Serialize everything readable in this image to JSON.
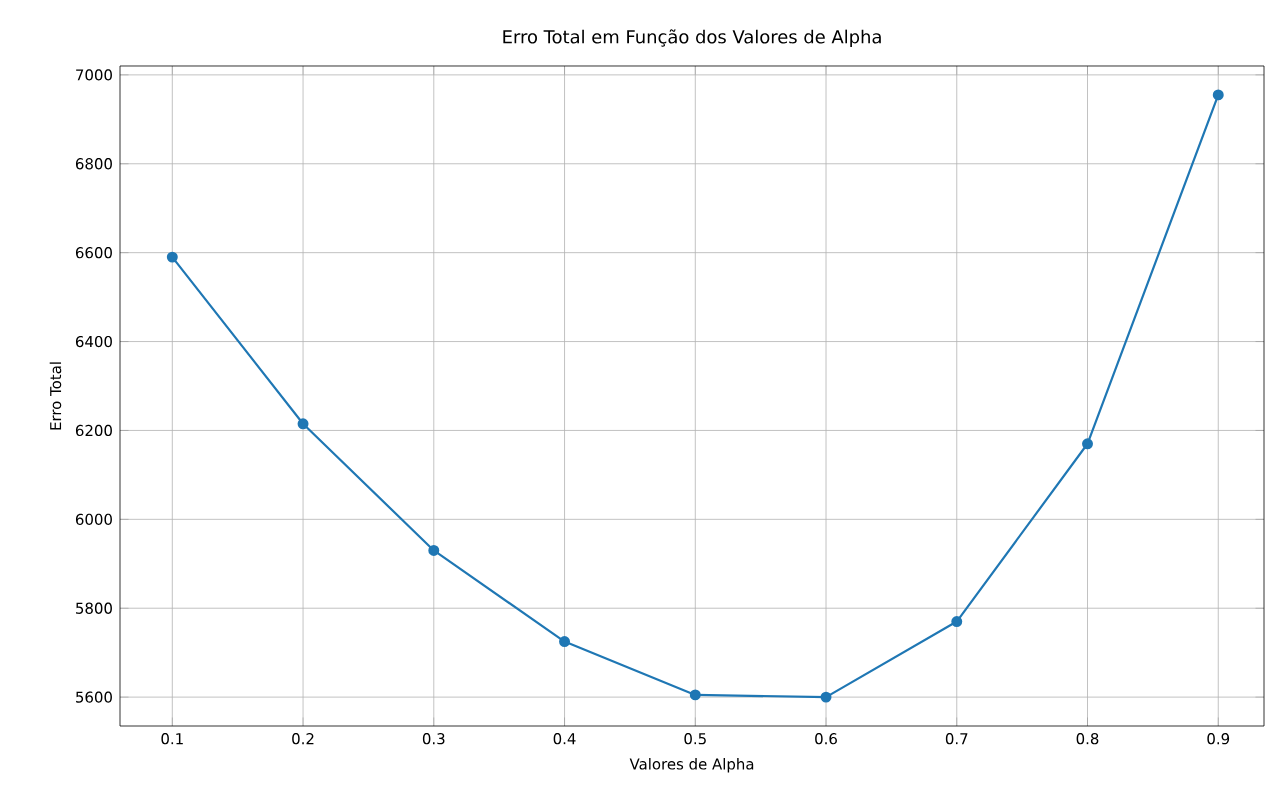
{
  "chart_data": {
    "type": "line",
    "title": "Erro Total em Função dos Valores de Alpha",
    "xlabel": "Valores de Alpha",
    "ylabel": "Erro Total",
    "x": [
      0.1,
      0.2,
      0.3,
      0.4,
      0.5,
      0.6,
      0.7,
      0.8,
      0.9
    ],
    "series": [
      {
        "color": "#1f77b4",
        "values": [
          6590,
          6215,
          5930,
          5725,
          5605,
          5600,
          5770,
          6170,
          6955
        ]
      }
    ],
    "xlim": [
      0.06,
      0.935
    ],
    "ylim": [
      5535,
      7020
    ],
    "xticks": [
      0.1,
      0.2,
      0.3,
      0.4,
      0.5,
      0.6,
      0.7,
      0.8,
      0.9
    ],
    "yticks": [
      5600,
      5800,
      6000,
      6200,
      6400,
      6600,
      6800,
      7000
    ],
    "grid": true,
    "marker": "circle",
    "line_style": "solid"
  }
}
